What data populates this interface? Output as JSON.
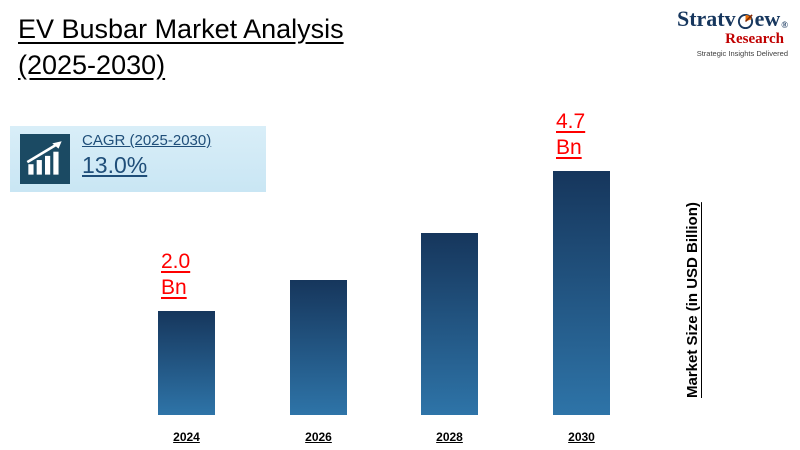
{
  "slide": {
    "title_line1": "EV Busbar Market Analysis",
    "title_line2": "(2025-2030)"
  },
  "logo": {
    "brand_part1": "Stratv",
    "brand_part2": "ew",
    "registered": "®",
    "brand_sub": "Research",
    "tagline": "Strategic Insights Delivered"
  },
  "cagr_box": {
    "label": "CAGR (2025-2030)",
    "value": "13.0%"
  },
  "chart_data": {
    "type": "bar",
    "title": "EV Busbar Market Analysis (2025-2030)",
    "categories": [
      "2024",
      "2026",
      "2028",
      "2030"
    ],
    "values": [
      2.0,
      2.6,
      3.5,
      4.7
    ],
    "unit": "USD Billion",
    "annotations": [
      {
        "value": "2.0",
        "unit": "Bn"
      },
      null,
      null,
      {
        "value": "4.7",
        "unit": "Bn"
      }
    ],
    "xlabel": "",
    "ylabel": "Market Size (in  USD Billion)",
    "ylim": [
      0,
      5
    ],
    "grid": false,
    "legend": "none",
    "colors": {
      "bar_top": "#16365c",
      "bar_bottom": "#2e74a8",
      "annotation": "#ff0000",
      "cagr_box_bg": "#d9eef8",
      "cagr_icon_bg": "#1b4a63",
      "cagr_text": "#1f4e79",
      "logo_navy": "#17375e",
      "logo_red": "#c00000"
    }
  }
}
